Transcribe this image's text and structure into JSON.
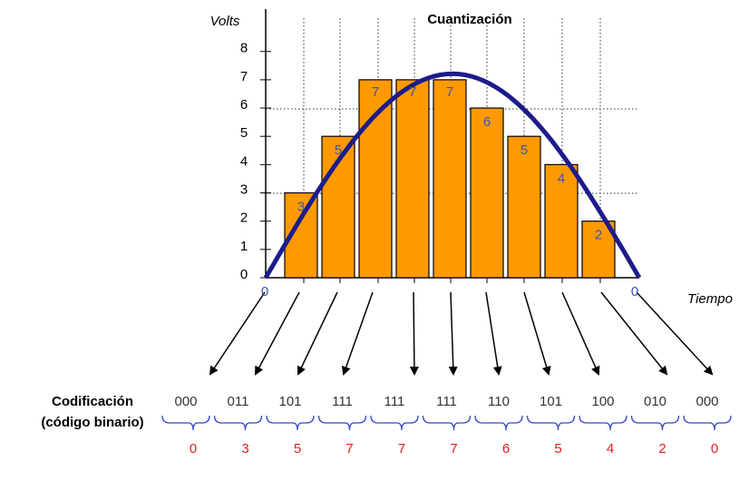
{
  "chart_data": {
    "type": "bar",
    "title": "Cuantización",
    "y_label": "Volts",
    "x_label": "Tiempo",
    "values": [
      3,
      5,
      7,
      7,
      7,
      6,
      5,
      4,
      2
    ],
    "color": "#ff9900",
    "label_color": "#3a55b0",
    "ylim": [
      0,
      9.5
    ],
    "yticks": [
      0,
      1,
      2,
      3,
      4,
      5,
      6,
      7,
      8
    ],
    "time_labels": [
      0,
      0
    ]
  },
  "coding": {
    "title": "Codificación",
    "subtitle": "(código binario)",
    "codes": [
      "000",
      "011",
      "101",
      "111",
      "111",
      "111",
      "110",
      "101",
      "100",
      "010",
      "000"
    ],
    "decimals": [
      0,
      3,
      5,
      7,
      7,
      7,
      6,
      5,
      4,
      2,
      0
    ]
  }
}
